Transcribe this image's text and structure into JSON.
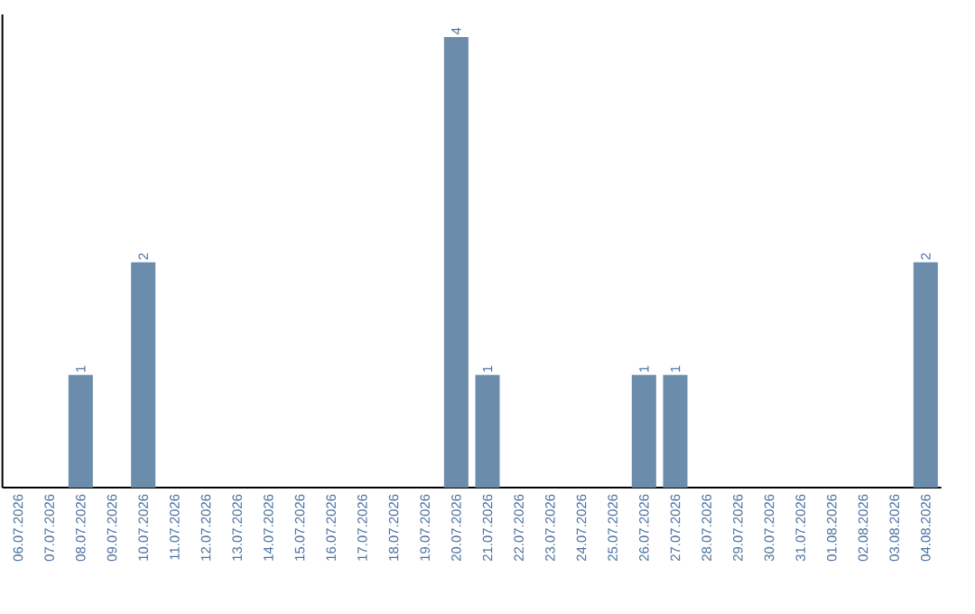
{
  "chart_data": {
    "type": "bar",
    "color": "#6b8cab",
    "categories": [
      "06.07.2026",
      "07.07.2026",
      "08.07.2026",
      "09.07.2026",
      "10.07.2026",
      "11.07.2026",
      "12.07.2026",
      "13.07.2026",
      "14.07.2026",
      "15.07.2026",
      "16.07.2026",
      "17.07.2026",
      "18.07.2026",
      "19.07.2026",
      "20.07.2026",
      "21.07.2026",
      "22.07.2026",
      "23.07.2026",
      "24.07.2026",
      "25.07.2026",
      "26.07.2026",
      "27.07.2026",
      "28.07.2026",
      "29.07.2026",
      "30.07.2026",
      "31.07.2026",
      "01.08.2026",
      "02.08.2026",
      "03.08.2026",
      "04.08.2026"
    ],
    "values": [
      0,
      0,
      1,
      0,
      2,
      0,
      0,
      0,
      0,
      0,
      0,
      0,
      0,
      0,
      4,
      1,
      0,
      0,
      0,
      0,
      1,
      1,
      0,
      0,
      0,
      0,
      0,
      0,
      0,
      2
    ],
    "value_labels": [
      null,
      null,
      "1",
      null,
      "2",
      null,
      null,
      null,
      null,
      null,
      null,
      null,
      null,
      null,
      "4",
      "1",
      null,
      null,
      null,
      null,
      "1",
      "1",
      null,
      null,
      null,
      null,
      null,
      null,
      null,
      "2"
    ]
  }
}
